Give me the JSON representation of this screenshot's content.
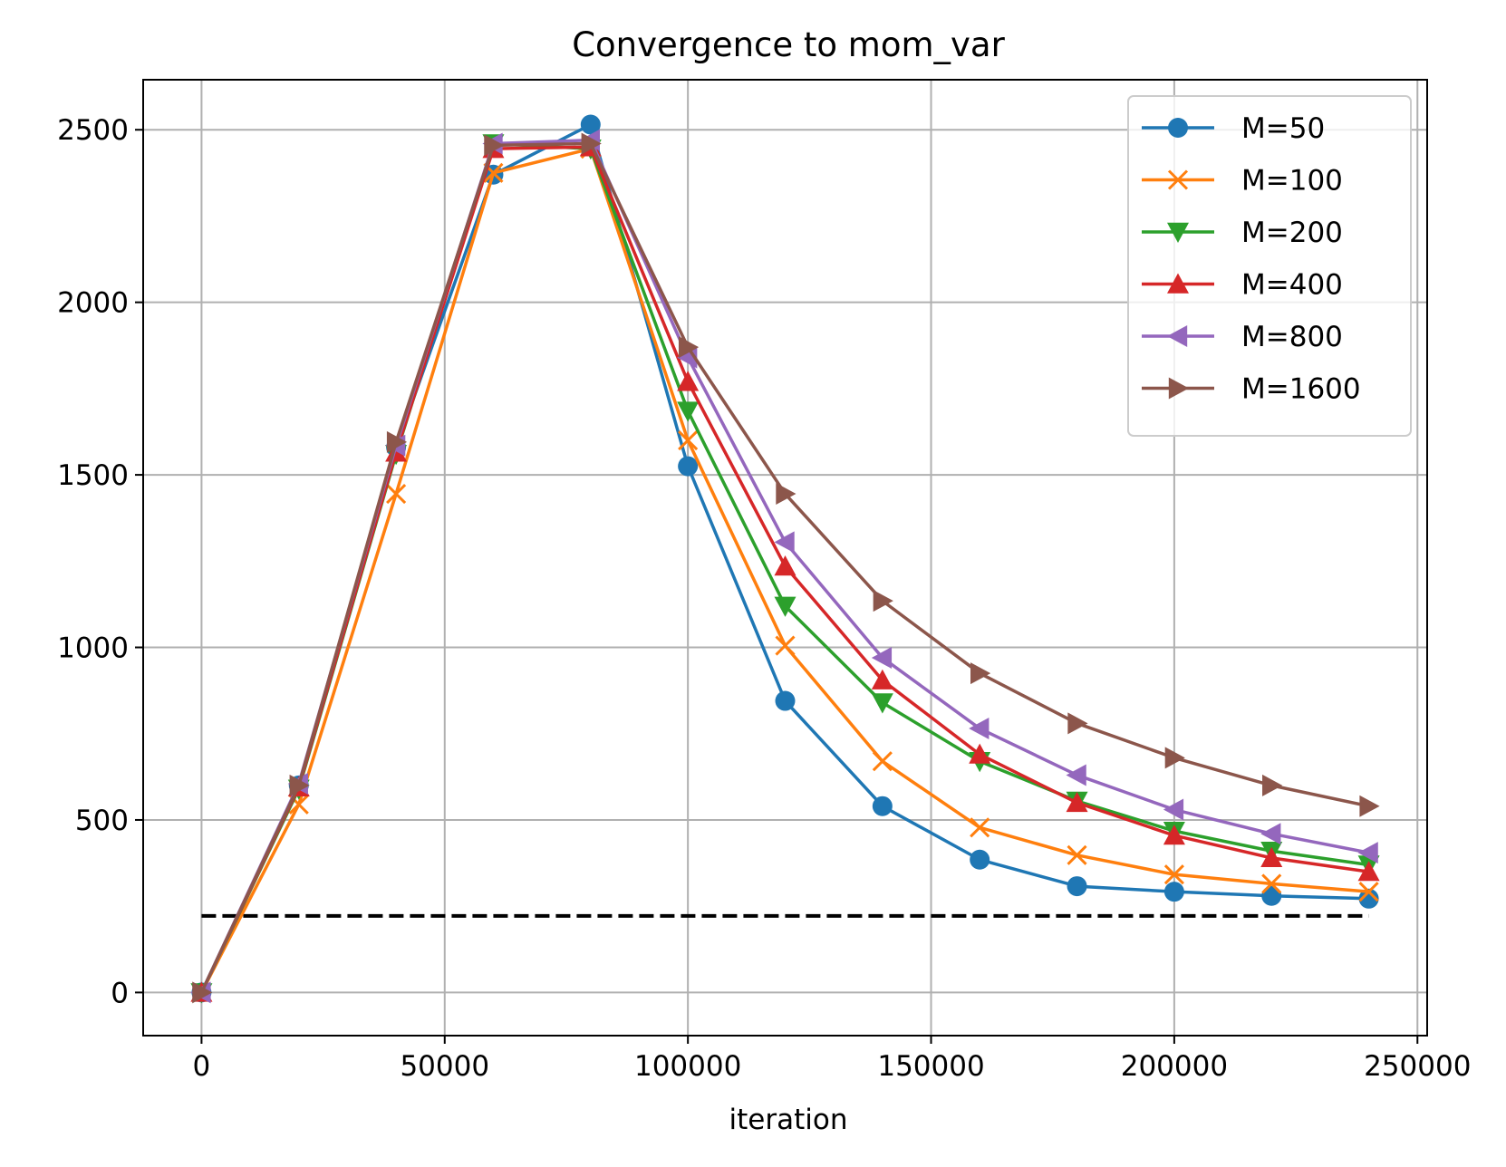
{
  "chart_data": {
    "type": "line",
    "title": "Convergence to mom_var",
    "xlabel": "iteration",
    "ylabel": "",
    "xlim": [
      -12000,
      252000
    ],
    "ylim": [
      -125,
      2645
    ],
    "xticks": [
      0,
      50000,
      100000,
      150000,
      200000,
      250000
    ],
    "yticks": [
      0,
      500,
      1000,
      1500,
      2000,
      2500
    ],
    "grid": true,
    "legend_position": "top-right",
    "x": [
      0,
      20000,
      40000,
      60000,
      80000,
      100000,
      120000,
      140000,
      160000,
      180000,
      200000,
      220000,
      240000
    ],
    "series": [
      {
        "name": "M=50",
        "color": "#1f77b4",
        "marker": "circle",
        "values": [
          0,
          600,
          1580,
          2370,
          2515,
          1525,
          845,
          540,
          385,
          308,
          292,
          280,
          272
        ]
      },
      {
        "name": "M=100",
        "color": "#ff7f0e",
        "marker": "x",
        "values": [
          0,
          545,
          1445,
          2375,
          2445,
          1600,
          1005,
          670,
          478,
          398,
          342,
          315,
          292
        ]
      },
      {
        "name": "M=200",
        "color": "#2ca02c",
        "marker": "triangle-down",
        "values": [
          0,
          590,
          1560,
          2460,
          2445,
          1685,
          1120,
          840,
          670,
          555,
          468,
          410,
          370
        ]
      },
      {
        "name": "M=400",
        "color": "#d62728",
        "marker": "triangle-up",
        "values": [
          0,
          595,
          1565,
          2445,
          2450,
          1770,
          1235,
          905,
          690,
          550,
          455,
          390,
          350
        ]
      },
      {
        "name": "M=800",
        "color": "#9467bd",
        "marker": "triangle-left",
        "values": [
          0,
          605,
          1585,
          2460,
          2470,
          1840,
          1305,
          970,
          765,
          630,
          530,
          460,
          405
        ]
      },
      {
        "name": "M=1600",
        "color": "#8c564b",
        "marker": "triangle-right",
        "values": [
          0,
          600,
          1595,
          2455,
          2460,
          1870,
          1445,
          1135,
          925,
          780,
          680,
          600,
          540
        ]
      }
    ],
    "reference_line": {
      "y": 222,
      "x_from": 0,
      "x_to": 240000,
      "style": "dashed",
      "color": "#000000"
    }
  }
}
